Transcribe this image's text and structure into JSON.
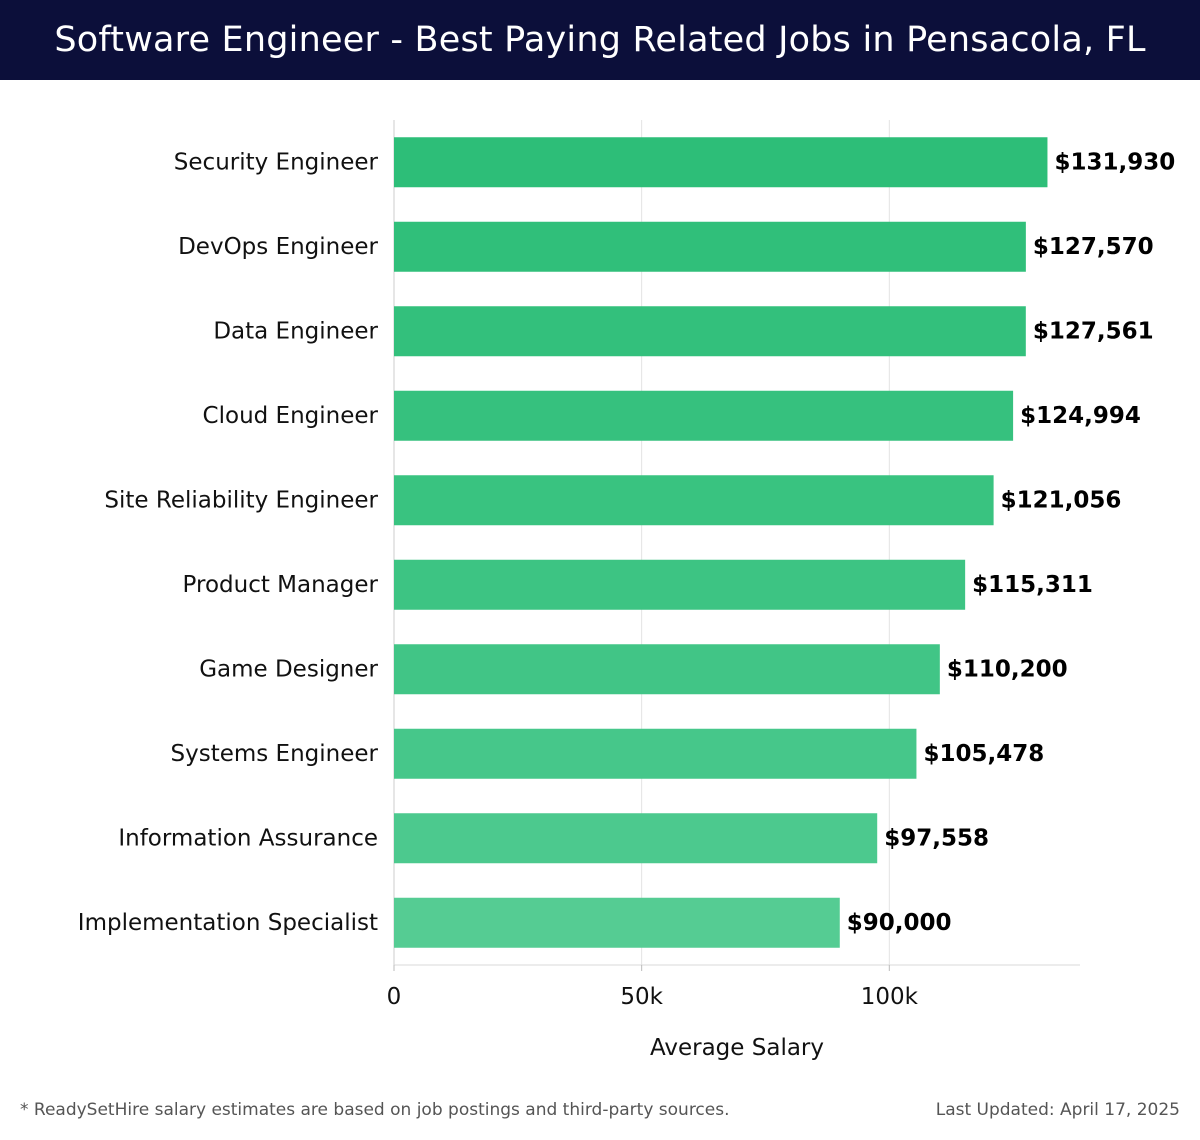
{
  "header": {
    "title": "Software Engineer - Best Paying Related Jobs in Pensacola, FL"
  },
  "chart_data": {
    "type": "bar",
    "orientation": "horizontal",
    "categories": [
      "Security Engineer",
      "DevOps Engineer",
      "Data Engineer",
      "Cloud Engineer",
      "Site Reliability Engineer",
      "Product Manager",
      "Game Designer",
      "Systems Engineer",
      "Information Assurance",
      "Implementation Specialist"
    ],
    "values": [
      131930,
      127570,
      127561,
      124994,
      121056,
      115311,
      110200,
      105478,
      97558,
      90000
    ],
    "value_labels": [
      "$131,930",
      "$127,570",
      "$127,561",
      "$124,994",
      "$121,056",
      "$115,311",
      "$110,200",
      "$105,478",
      "$97,558",
      "$90,000"
    ],
    "bar_colors": [
      "#2dbe78",
      "#30bf7a",
      "#33c07c",
      "#36c17e",
      "#39c380",
      "#3dc483",
      "#41c586",
      "#46c78a",
      "#4cc98e",
      "#55cc93"
    ],
    "xlabel": "Average Salary",
    "ylabel": "",
    "xlim": [
      0,
      138500
    ],
    "xticks": [
      0,
      50000,
      100000
    ],
    "xtick_labels": [
      "0",
      "50k",
      "100k"
    ],
    "grid": true
  },
  "footer": {
    "note": "* ReadySetHire salary estimates are based on job postings and third-party sources.",
    "updated": "Last Updated: April 17, 2025"
  }
}
